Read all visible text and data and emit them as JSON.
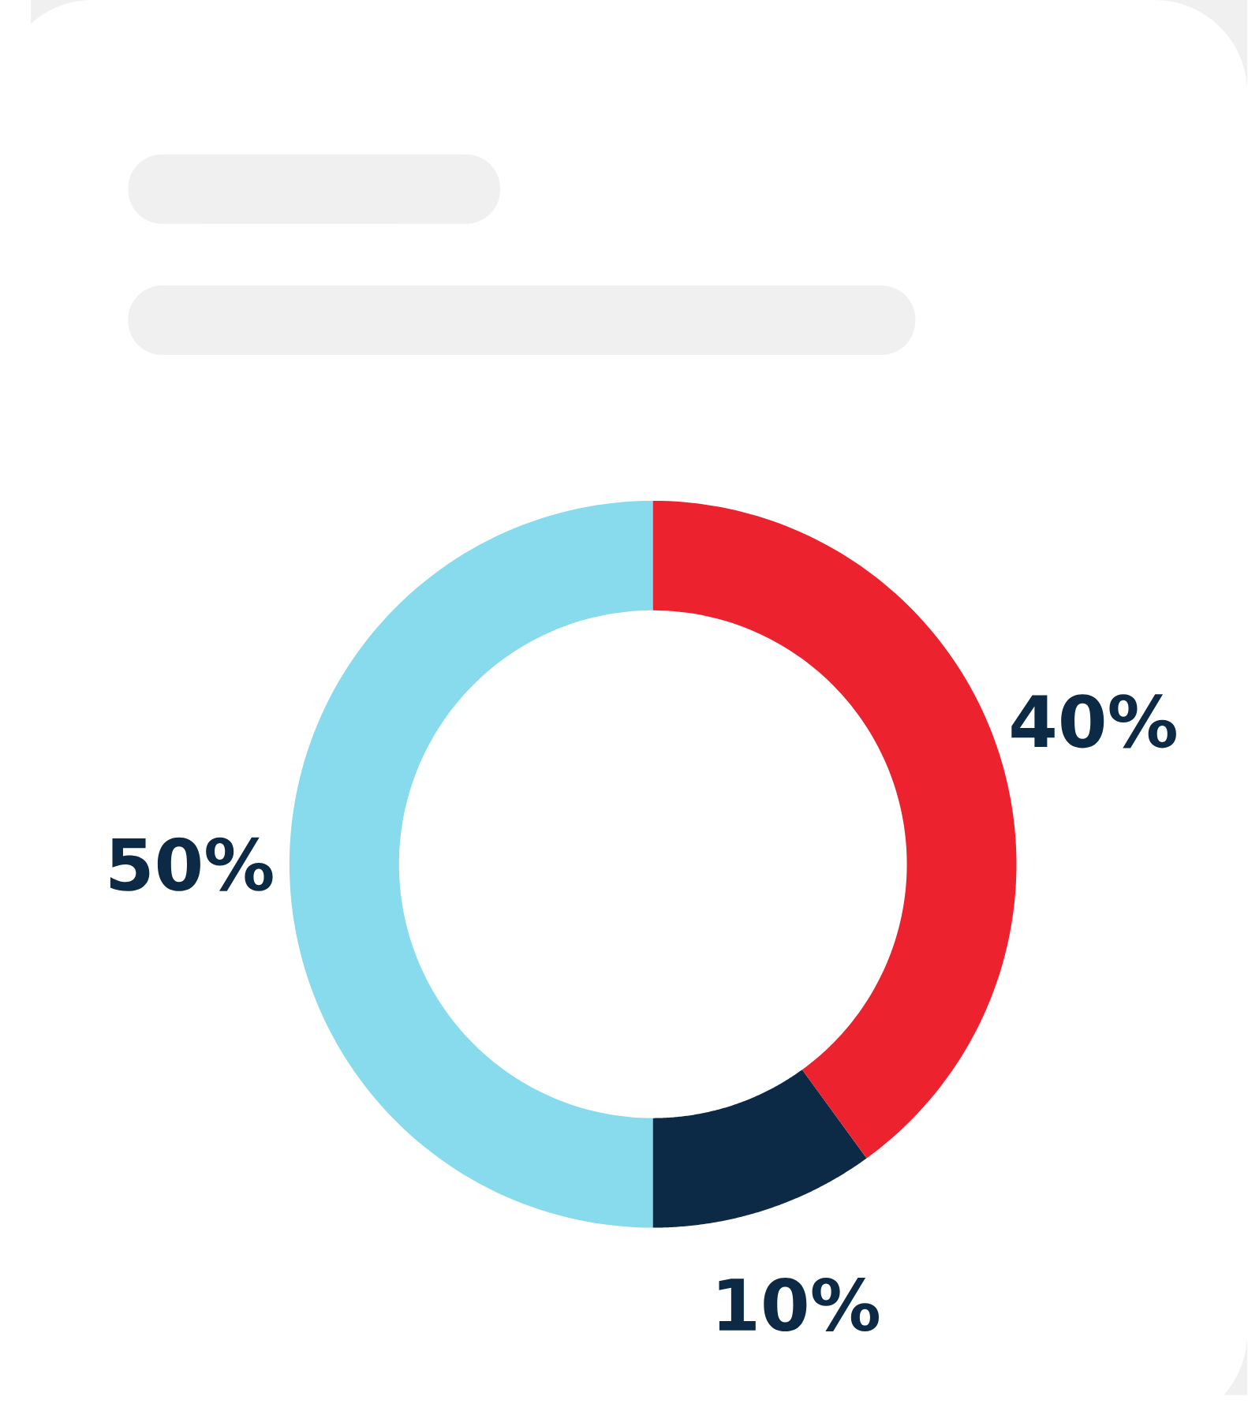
{
  "chart_data": {
    "type": "donut",
    "categories": [
      null,
      null,
      null
    ],
    "values": [
      40,
      10,
      50
    ],
    "colors": [
      "#ec222f",
      "#0c2a45",
      "#88dbec"
    ],
    "value_labels": [
      "40%",
      "10%",
      "50%"
    ]
  }
}
